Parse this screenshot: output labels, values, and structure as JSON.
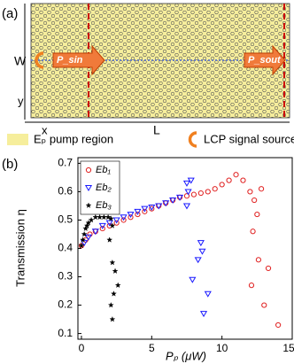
{
  "panel_a": {
    "label": "(a)",
    "width_label": "W",
    "length_label": "L",
    "y_axis": "y",
    "x_axis": "x",
    "input_arrow": "P_sin",
    "output_arrow": "P_sout",
    "pump_legend": "Eₚ pump region",
    "source_legend": "LCP signal source"
  },
  "panel_b": {
    "label": "(b)"
  },
  "chart_data": {
    "type": "scatter",
    "ylabel": "Transmission η",
    "xlabel": "Pₚ (μW)",
    "xlim": [
      -0.25,
      15
    ],
    "ylim": [
      0.08,
      0.72
    ],
    "xticks": [
      0,
      5,
      10,
      15
    ],
    "yticks": [
      0.1,
      0.2,
      0.3,
      0.4,
      0.5,
      0.6,
      0.7
    ],
    "legend": "upper left",
    "series": [
      {
        "name": "Eb₁",
        "color": "#e02020",
        "marker": "circle",
        "x": [
          0,
          0.3,
          0.6,
          1,
          1.5,
          2,
          2.5,
          3,
          3.5,
          4,
          4.5,
          5,
          5.5,
          6,
          6.5,
          7,
          7.5,
          8,
          8.5,
          9,
          9.5,
          10,
          10.5,
          11,
          11.5,
          12,
          12.8,
          12.3,
          12.5,
          12.2,
          12.6,
          12.1,
          13.3,
          13,
          14
        ],
        "values": [
          0.41,
          0.43,
          0.45,
          0.46,
          0.47,
          0.48,
          0.49,
          0.5,
          0.51,
          0.52,
          0.53,
          0.54,
          0.55,
          0.56,
          0.57,
          0.58,
          0.585,
          0.59,
          0.595,
          0.6,
          0.61,
          0.625,
          0.64,
          0.66,
          0.64,
          0.6,
          0.61,
          0.57,
          0.52,
          0.46,
          0.36,
          0.27,
          0.33,
          0.2,
          0.13
        ]
      },
      {
        "name": "Eb₂",
        "color": "#1a1aff",
        "marker": "triangle",
        "x": [
          0.2,
          0.5,
          1,
          1.5,
          2,
          2.5,
          3,
          3.5,
          4,
          4.5,
          5,
          5.5,
          6,
          6.5,
          7,
          7.8,
          7.5,
          7.6,
          7.5,
          8.5,
          8.6,
          8.3,
          7.9,
          9,
          8.7
        ],
        "values": [
          0.42,
          0.44,
          0.46,
          0.48,
          0.49,
          0.5,
          0.51,
          0.52,
          0.53,
          0.54,
          0.545,
          0.55,
          0.56,
          0.57,
          0.58,
          0.64,
          0.63,
          0.6,
          0.55,
          0.42,
          0.39,
          0.36,
          0.29,
          0.24,
          0.17
        ]
      },
      {
        "name": "Eb₃",
        "color": "#000000",
        "marker": "star",
        "x": [
          0,
          0.1,
          0.2,
          0.3,
          0.4,
          0.5,
          0.7,
          1,
          1.3,
          1.6,
          1.9,
          2.1,
          2.2,
          2,
          2.2,
          2.4,
          2.6,
          2.3,
          2.1,
          2.2
        ],
        "values": [
          0.41,
          0.43,
          0.45,
          0.47,
          0.48,
          0.49,
          0.5,
          0.51,
          0.51,
          0.51,
          0.51,
          0.505,
          0.48,
          0.43,
          0.35,
          0.32,
          0.27,
          0.24,
          0.2,
          0.15
        ]
      }
    ]
  }
}
